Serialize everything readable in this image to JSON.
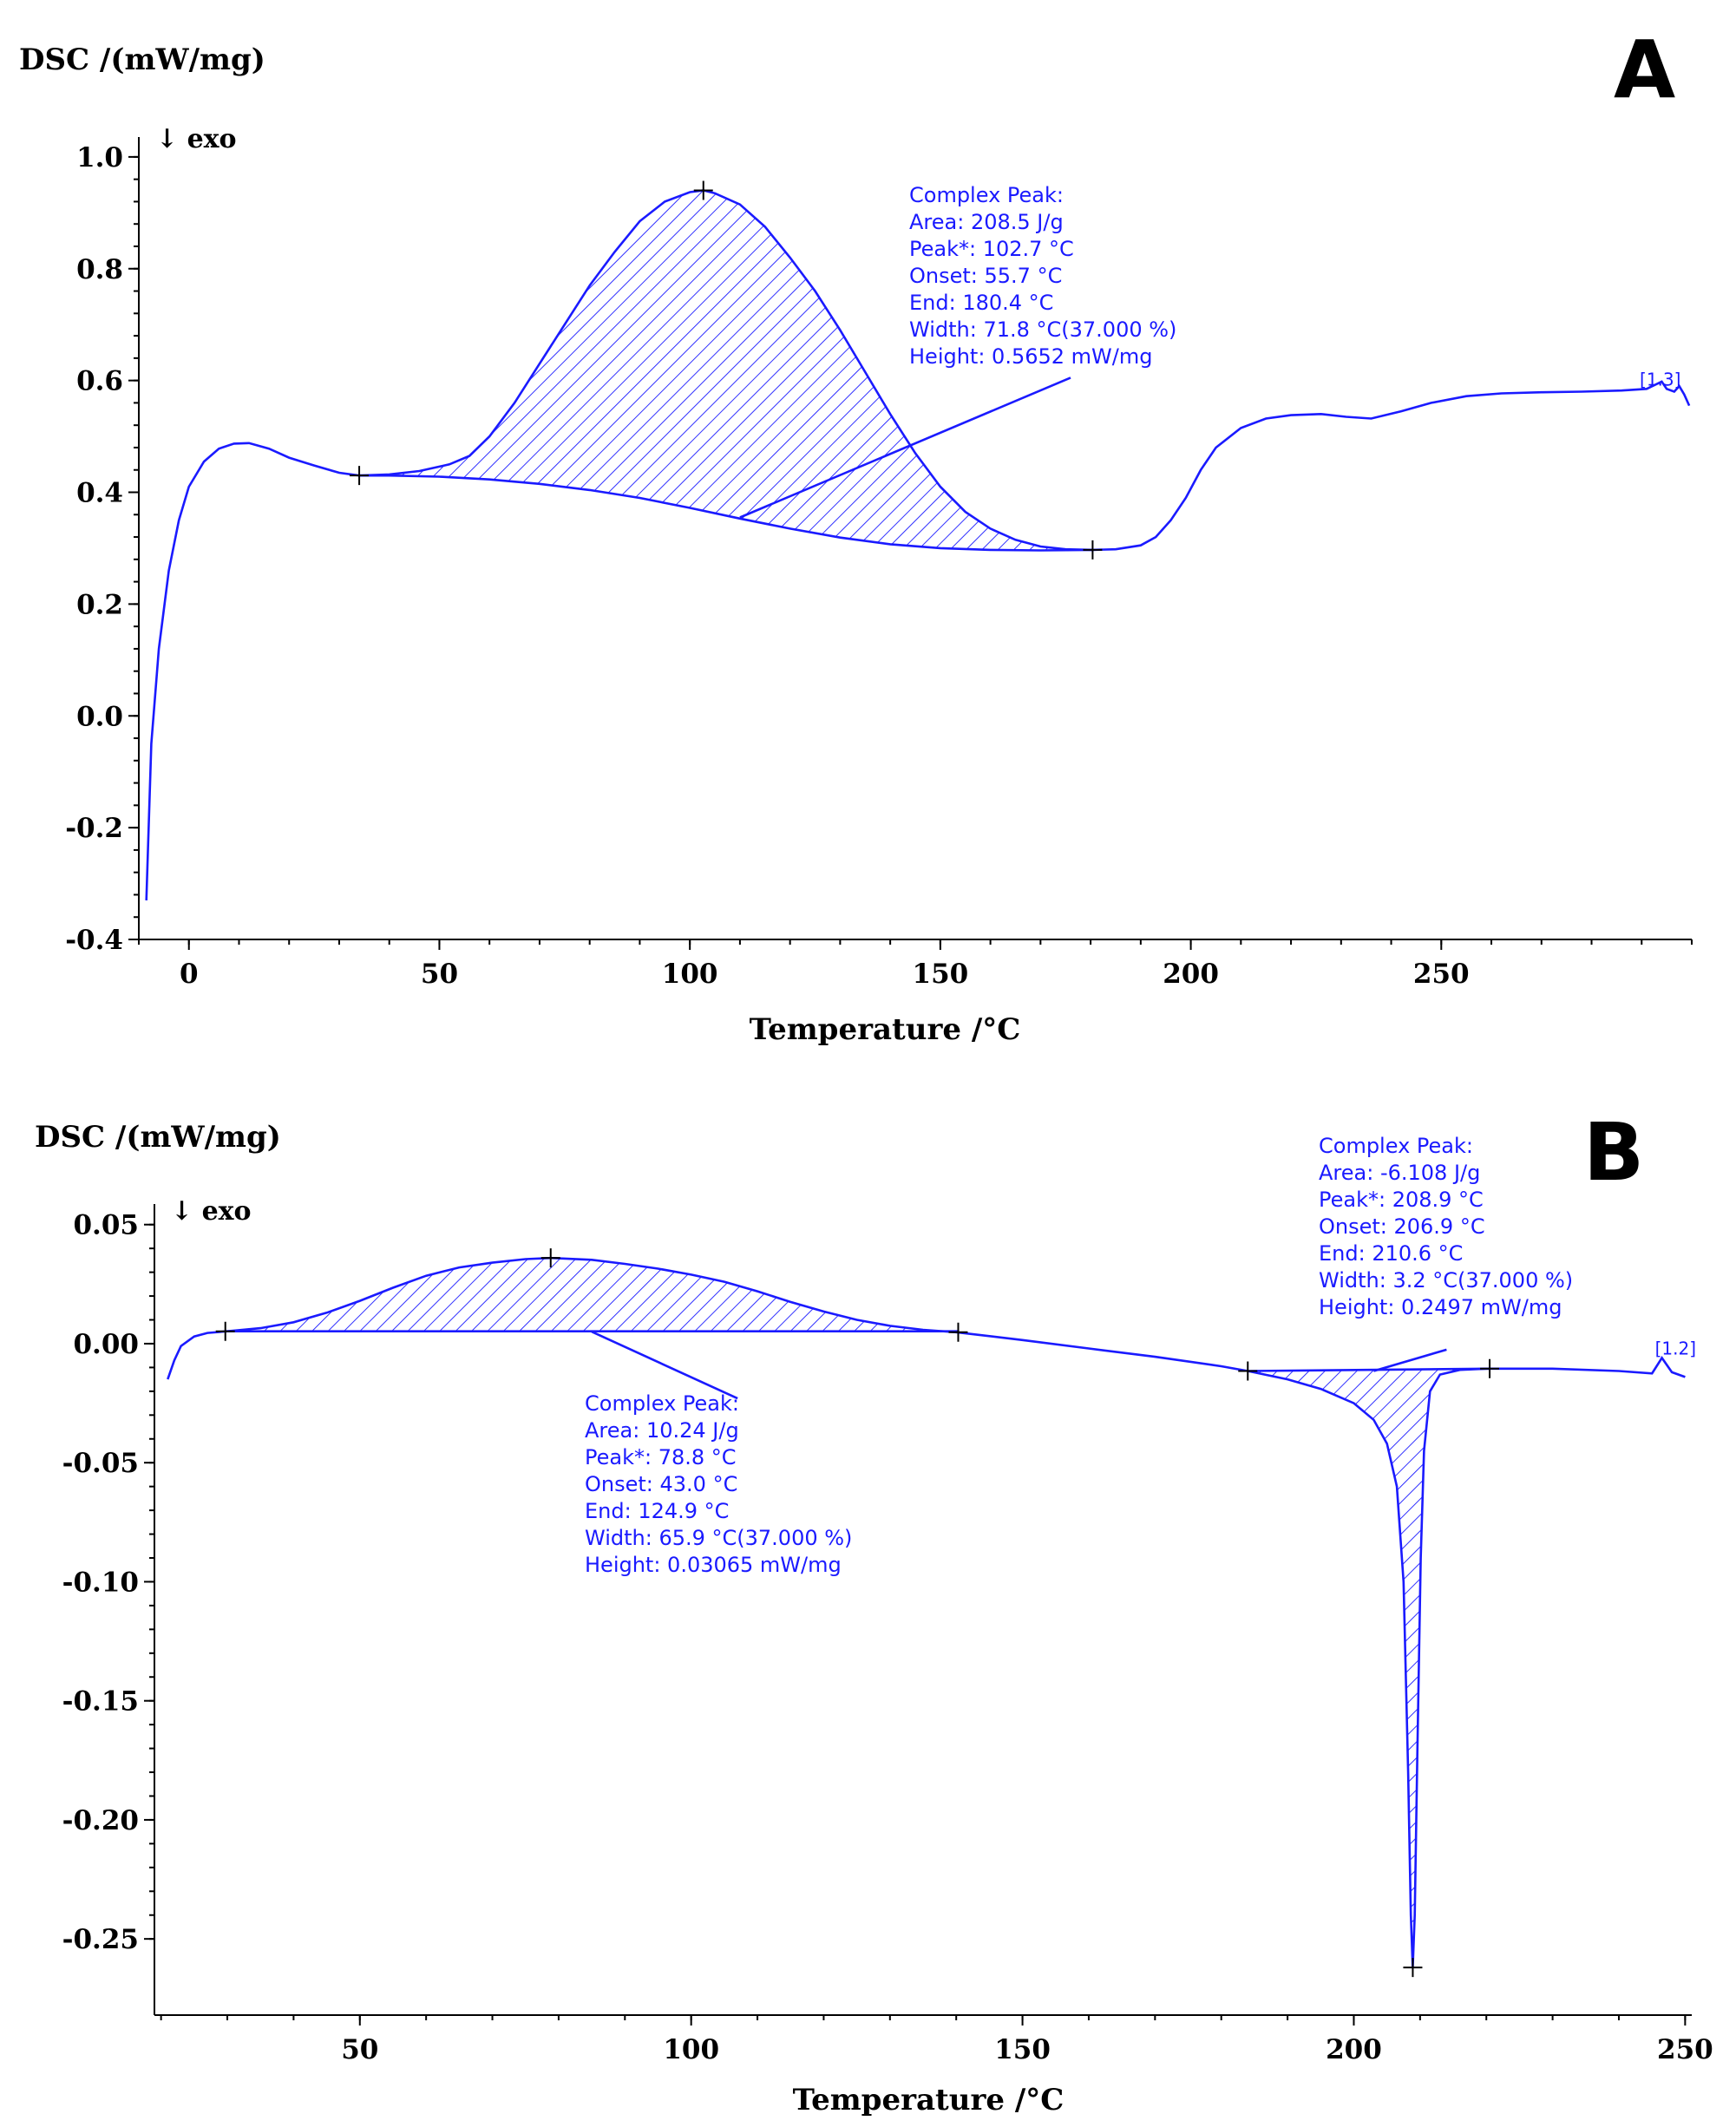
{
  "chart_data": [
    {
      "panel": "A",
      "type": "line",
      "ylabel": "DSC /(mW/mg)",
      "xlabel": "Temperature /°C",
      "exo_label": "↓ exo",
      "xlim": [
        -10,
        300
      ],
      "ylim": [
        -0.4,
        1.02
      ],
      "xticks": [
        0,
        50,
        100,
        150,
        200,
        250
      ],
      "yticks": [
        1.0,
        0.8,
        0.6,
        0.4,
        0.2,
        0.0,
        -0.2,
        -0.4
      ],
      "ytick_labels": [
        "1.0",
        "0.8",
        "0.6",
        "0.4",
        "0.2",
        "0.0",
        "-0.2",
        "-0.4"
      ],
      "curve": [
        [
          -8.5,
          -0.33
        ],
        [
          -7.5,
          -0.05
        ],
        [
          -6,
          0.12
        ],
        [
          -4,
          0.26
        ],
        [
          -2,
          0.35
        ],
        [
          0,
          0.41
        ],
        [
          3,
          0.455
        ],
        [
          6,
          0.478
        ],
        [
          9,
          0.487
        ],
        [
          12,
          0.488
        ],
        [
          16,
          0.478
        ],
        [
          20,
          0.462
        ],
        [
          25,
          0.448
        ],
        [
          30,
          0.435
        ],
        [
          34,
          0.43
        ],
        [
          40,
          0.432
        ],
        [
          46,
          0.438
        ],
        [
          52,
          0.45
        ],
        [
          56,
          0.465
        ],
        [
          60,
          0.5
        ],
        [
          65,
          0.56
        ],
        [
          70,
          0.63
        ],
        [
          75,
          0.7
        ],
        [
          80,
          0.77
        ],
        [
          85,
          0.83
        ],
        [
          90,
          0.885
        ],
        [
          95,
          0.92
        ],
        [
          100,
          0.937
        ],
        [
          102.7,
          0.94
        ],
        [
          105,
          0.935
        ],
        [
          110,
          0.915
        ],
        [
          115,
          0.875
        ],
        [
          120,
          0.82
        ],
        [
          125,
          0.76
        ],
        [
          130,
          0.69
        ],
        [
          135,
          0.615
        ],
        [
          140,
          0.54
        ],
        [
          145,
          0.47
        ],
        [
          150,
          0.41
        ],
        [
          155,
          0.365
        ],
        [
          160,
          0.335
        ],
        [
          165,
          0.315
        ],
        [
          170,
          0.303
        ],
        [
          175,
          0.298
        ],
        [
          180.4,
          0.297
        ],
        [
          185,
          0.298
        ],
        [
          190,
          0.305
        ],
        [
          193,
          0.32
        ],
        [
          196,
          0.35
        ],
        [
          199,
          0.39
        ],
        [
          202,
          0.44
        ],
        [
          205,
          0.48
        ],
        [
          210,
          0.515
        ],
        [
          215,
          0.532
        ],
        [
          220,
          0.538
        ],
        [
          226,
          0.54
        ],
        [
          231,
          0.535
        ],
        [
          236,
          0.532
        ],
        [
          242,
          0.545
        ],
        [
          248,
          0.56
        ],
        [
          255,
          0.572
        ],
        [
          262,
          0.577
        ],
        [
          270,
          0.579
        ],
        [
          278,
          0.58
        ],
        [
          286,
          0.582
        ],
        [
          291,
          0.585
        ],
        [
          294,
          0.598
        ],
        [
          295,
          0.585
        ],
        [
          296.5,
          0.58
        ],
        [
          297.5,
          0.59
        ],
        [
          298.5,
          0.575
        ],
        [
          299.5,
          0.555
        ]
      ],
      "baseline": [
        [
          34,
          0.43
        ],
        [
          40,
          0.43
        ],
        [
          50,
          0.428
        ],
        [
          60,
          0.423
        ],
        [
          70,
          0.415
        ],
        [
          80,
          0.404
        ],
        [
          90,
          0.39
        ],
        [
          100,
          0.372
        ],
        [
          110,
          0.353
        ],
        [
          120,
          0.335
        ],
        [
          130,
          0.319
        ],
        [
          140,
          0.307
        ],
        [
          150,
          0.3
        ],
        [
          160,
          0.297
        ],
        [
          170,
          0.296
        ],
        [
          180.4,
          0.297
        ]
      ],
      "markers": [
        [
          34,
          0.43
        ],
        [
          102.7,
          0.94
        ],
        [
          180.4,
          0.297
        ]
      ],
      "peak_label": {
        "at": [
          291,
          0.585
        ],
        "text": "[1.3]"
      },
      "annotation": {
        "lines": [
          "Complex Peak:",
          "Area:    208.5 J/g",
          "Peak*:   102.7 °C",
          "Onset:    55.7 °C",
          "End:     180.4 °C",
          "Width:    71.8 °C(37.000 %)",
          "Height:     0.5652 mW/mg"
        ],
        "anchor_text_at": [
          175,
          0.96
        ],
        "leader_from": [
          176,
          0.605
        ],
        "leader_to": [
          110,
          0.355
        ]
      }
    },
    {
      "panel": "B",
      "type": "line",
      "ylabel": "DSC /(mW/mg)",
      "xlabel": "Temperature /°C",
      "exo_label": "↓ exo",
      "xlim": [
        19,
        251
      ],
      "ylim": [
        -0.282,
        0.055
      ],
      "xticks": [
        50,
        100,
        150,
        200,
        250
      ],
      "yticks": [
        0.05,
        0.0,
        -0.05,
        -0.1,
        -0.15,
        -0.2,
        -0.25
      ],
      "ytick_labels": [
        "0.05",
        "0.00",
        "-0.05",
        "-0.10",
        "-0.15",
        "-0.20",
        "-0.25"
      ],
      "curve": [
        [
          21,
          -0.015
        ],
        [
          22,
          -0.007
        ],
        [
          23,
          -0.001
        ],
        [
          25,
          0.003
        ],
        [
          27,
          0.0045
        ],
        [
          30,
          0.0052
        ],
        [
          35,
          0.0065
        ],
        [
          40,
          0.009
        ],
        [
          45,
          0.013
        ],
        [
          50,
          0.018
        ],
        [
          55,
          0.0235
        ],
        [
          60,
          0.0285
        ],
        [
          65,
          0.032
        ],
        [
          70,
          0.034
        ],
        [
          75,
          0.0355
        ],
        [
          78.8,
          0.036
        ],
        [
          85,
          0.0352
        ],
        [
          90,
          0.0335
        ],
        [
          95,
          0.0315
        ],
        [
          100,
          0.029
        ],
        [
          105,
          0.026
        ],
        [
          110,
          0.022
        ],
        [
          115,
          0.0175
        ],
        [
          120,
          0.0135
        ],
        [
          125,
          0.01
        ],
        [
          130,
          0.0075
        ],
        [
          135,
          0.0058
        ],
        [
          140,
          0.0048
        ],
        [
          150,
          0.0015
        ],
        [
          160,
          -0.002
        ],
        [
          170,
          -0.0055
        ],
        [
          180,
          -0.0095
        ],
        [
          184,
          -0.0115
        ],
        [
          190,
          -0.015
        ],
        [
          195,
          -0.019
        ],
        [
          200,
          -0.025
        ],
        [
          203,
          -0.032
        ],
        [
          205,
          -0.042
        ],
        [
          206.5,
          -0.06
        ],
        [
          207.5,
          -0.1
        ],
        [
          208.2,
          -0.18
        ],
        [
          208.6,
          -0.24
        ],
        [
          208.9,
          -0.262
        ],
        [
          209.2,
          -0.24
        ],
        [
          209.6,
          -0.17
        ],
        [
          210.1,
          -0.09
        ],
        [
          210.6,
          -0.045
        ],
        [
          211.5,
          -0.02
        ],
        [
          213,
          -0.013
        ],
        [
          216,
          -0.011
        ],
        [
          220,
          -0.0105
        ],
        [
          230,
          -0.0105
        ],
        [
          240,
          -0.0115
        ],
        [
          245,
          -0.0125
        ],
        [
          246.5,
          -0.006
        ],
        [
          248,
          -0.012
        ],
        [
          250,
          -0.014
        ]
      ],
      "baseline1": [
        [
          29.7,
          0.0052
        ],
        [
          140.3,
          0.0052
        ]
      ],
      "baseline2": [
        [
          184,
          -0.0115
        ],
        [
          220.5,
          -0.0105
        ]
      ],
      "markers": [
        [
          29.7,
          0.0052
        ],
        [
          78.8,
          0.036
        ],
        [
          140.3,
          0.0048
        ],
        [
          184,
          -0.0115
        ],
        [
          208.9,
          -0.262
        ],
        [
          220.5,
          -0.0105
        ]
      ],
      "peak_label": {
        "at": [
          246.5,
          -0.006
        ],
        "text": "[1.2]"
      },
      "annotations": [
        {
          "lines": [
            "Complex Peak:",
            "Area:     10.24 J/g",
            "Peak*:   78.8 °C",
            "Onset:   43.0 °C",
            "End:     124.9 °C",
            "Width:    65.9 °C(37.000 %)",
            "Height:    0.03065 mW/mg"
          ],
          "leader_from": [
            85,
            0.005
          ],
          "leader_to": [
            107,
            -0.023
          ]
        },
        {
          "lines": [
            "Complex Peak:",
            "Area:       -6.108 J/g",
            "Peak*:   208.9 °C",
            "Onset:   206.9 °C",
            "End:     210.6 °C",
            "Width:      3.2 °C(37.000 %)",
            "Height:    0.2497 mW/mg"
          ],
          "leader_from": [
            203,
            -0.0115
          ],
          "leader_to": [
            214,
            -0.0025
          ]
        }
      ]
    }
  ]
}
